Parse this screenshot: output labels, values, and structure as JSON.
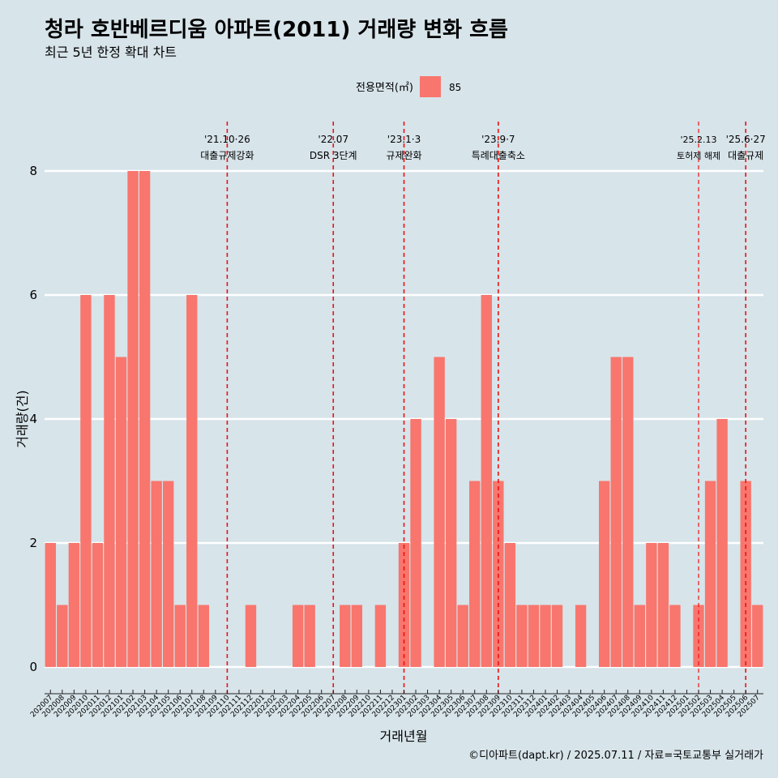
{
  "chart_data": {
    "type": "bar",
    "title": "청라 호반베르디움 아파트(2011) 거래량 변화 흐름",
    "subtitle": "최근 5년 한정 확대 차트",
    "xlabel": "거래년월",
    "ylabel": "거래량(건)",
    "caption": "©디아파트(dapt.kr) / 2025.07.11 / 자료=국토교통부 실거래가",
    "legend": {
      "title": "전용면적(㎡)",
      "position": "top",
      "color": "#f8766d"
    },
    "ylim": [
      0,
      8.3
    ],
    "yticks": [
      0,
      2,
      4,
      6,
      8
    ],
    "grid": true,
    "categories": [
      "202007",
      "202008",
      "202009",
      "202010",
      "202011",
      "202012",
      "202101",
      "202102",
      "202103",
      "202104",
      "202105",
      "202106",
      "202107",
      "202108",
      "202109",
      "202110",
      "202111",
      "202112",
      "202201",
      "202202",
      "202203",
      "202204",
      "202205",
      "202206",
      "202207",
      "202208",
      "202209",
      "202210",
      "202211",
      "202212",
      "202301",
      "202302",
      "202303",
      "202304",
      "202305",
      "202306",
      "202307",
      "202308",
      "202309",
      "202310",
      "202311",
      "202312",
      "202401",
      "202402",
      "202403",
      "202404",
      "202405",
      "202406",
      "202407",
      "202408",
      "202409",
      "202410",
      "202411",
      "202412",
      "202501",
      "202502",
      "202503",
      "202504",
      "202505",
      "202506",
      "202507"
    ],
    "series": [
      {
        "name": "85",
        "color": "#f8766d",
        "values": [
          2,
          1,
          2,
          6,
          2,
          6,
          5,
          8,
          8,
          3,
          3,
          1,
          6,
          1,
          0,
          0,
          0,
          1,
          0,
          0,
          0,
          1,
          1,
          0,
          0,
          1,
          1,
          0,
          1,
          0,
          2,
          4,
          0,
          5,
          4,
          1,
          3,
          6,
          3,
          2,
          1,
          1,
          1,
          1,
          0,
          1,
          0,
          3,
          5,
          5,
          1,
          2,
          2,
          1,
          0,
          1,
          3,
          4,
          0,
          3,
          1
        ]
      }
    ],
    "annotations": [
      {
        "x": "202110",
        "line1": "'21.10·26",
        "line2": "대출규제강화"
      },
      {
        "x": "202207",
        "line1": "'22.07",
        "line2": "DSR 3단계"
      },
      {
        "x": "202301",
        "line1": "'23.1·3",
        "line2": "규제완화"
      },
      {
        "x": "202309",
        "line1": "'23.9·7",
        "line2": "특례대출축소"
      },
      {
        "x": "202502",
        "line1": "'25.2.13",
        "line2": "토허제 해제"
      },
      {
        "x": "202506",
        "line1": "'25.6·27",
        "line2": "대출규제"
      }
    ]
  }
}
